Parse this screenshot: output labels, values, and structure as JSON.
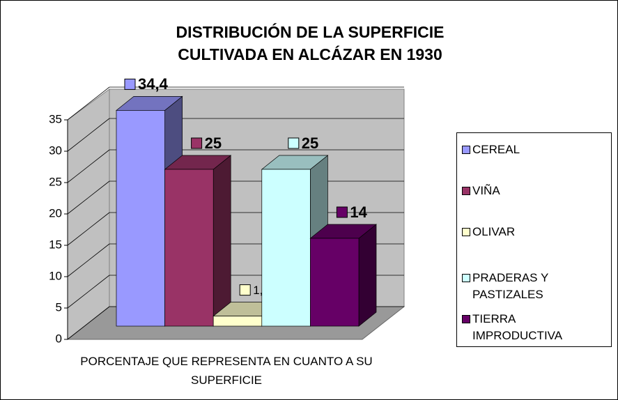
{
  "chart_data": {
    "type": "bar3d",
    "title": "DISTRIBUCIÓN DE LA SUPERFICIE CULTIVADA EN ALCÁZAR EN 1930",
    "categories": [
      "PORCENTAJE QUE REPRESENTA EN CUANTO A SU SUPERFICIE"
    ],
    "series": [
      {
        "name": "CEREAL",
        "color": "#9999ff",
        "values": [
          34.4
        ],
        "value_labels": [
          "34,4"
        ]
      },
      {
        "name": "VIÑA",
        "color": "#993366",
        "values": [
          25
        ]
      },
      {
        "name": "OLIVAR",
        "color": "#ffffcc",
        "values": [
          1.6
        ],
        "value_labels": [
          "1,6"
        ]
      },
      {
        "name": "PRADERAS Y PASTIZALES",
        "color": "#ccffff",
        "values": [
          25
        ]
      },
      {
        "name": "TIERRA IMPRODUCTIVA",
        "color": "#660066",
        "values": [
          14
        ]
      }
    ],
    "ylim": [
      0,
      35
    ],
    "yticks": [
      0,
      5,
      10,
      15,
      20,
      25,
      30,
      35
    ],
    "grid": true,
    "legend": "right"
  }
}
